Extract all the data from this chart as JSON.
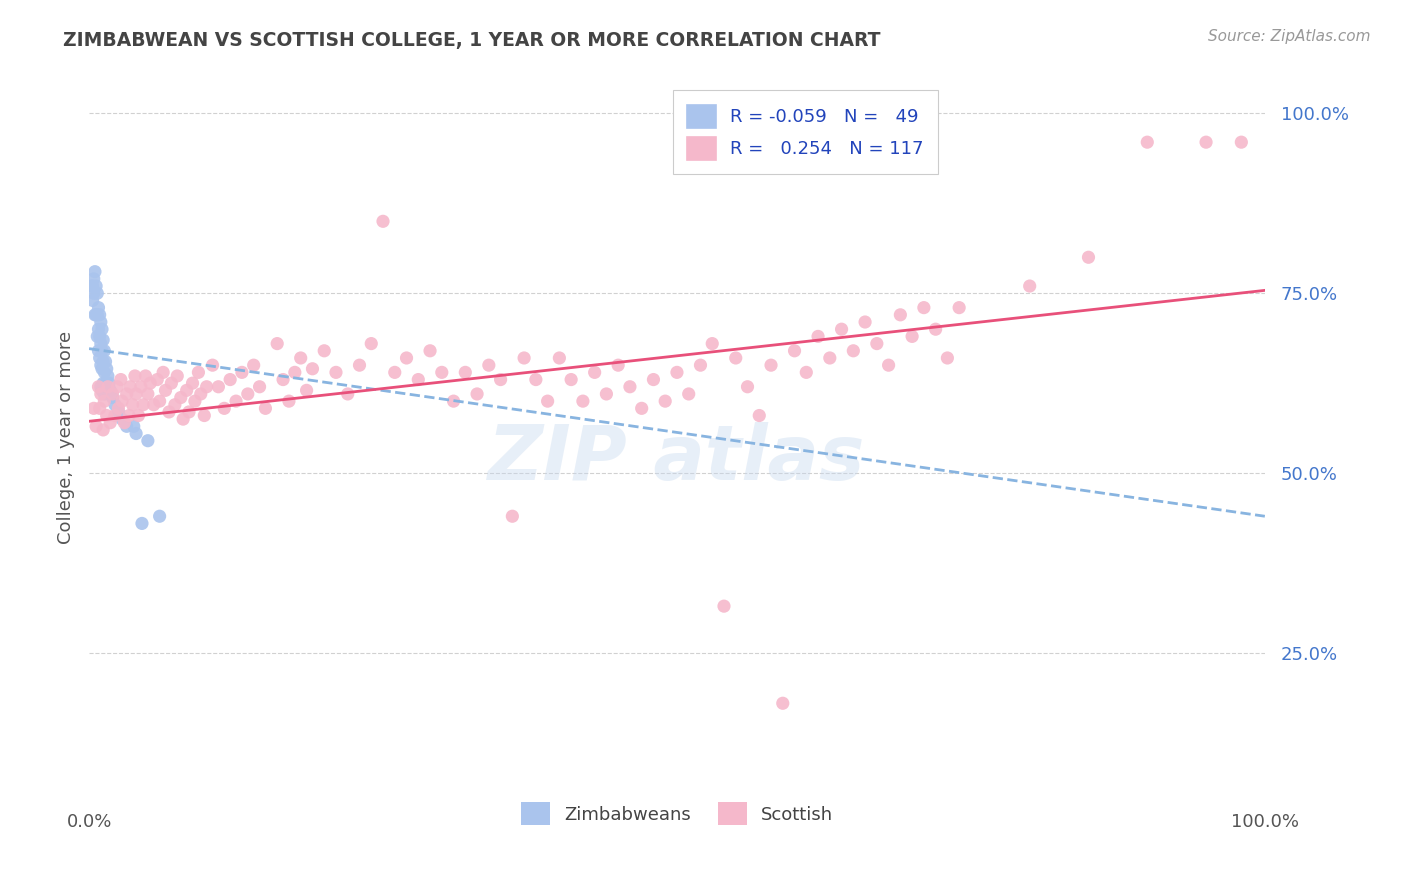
{
  "title": "ZIMBABWEAN VS SCOTTISH COLLEGE, 1 YEAR OR MORE CORRELATION CHART",
  "source": "Source: ZipAtlas.com",
  "ylabel": "College, 1 year or more",
  "zimbabwean_color": "#aac4ed",
  "scottish_color": "#f5b8cb",
  "zimbabwean_line_color": "#88b4e0",
  "scottish_line_color": "#e8507a",
  "background_color": "#ffffff",
  "grid_color": "#cccccc",
  "title_color": "#444444",
  "axis_color": "#555555",
  "ytick_color": "#4477cc",
  "xlim": [
    0.0,
    1.0
  ],
  "ylim": [
    0.05,
    1.05
  ],
  "zim_line": [
    0.0,
    0.673,
    1.0,
    0.44
  ],
  "scot_line": [
    0.0,
    0.572,
    1.0,
    0.754
  ],
  "zimbabwean_points": [
    [
      0.002,
      0.76
    ],
    [
      0.003,
      0.76
    ],
    [
      0.003,
      0.74
    ],
    [
      0.004,
      0.77
    ],
    [
      0.004,
      0.75
    ],
    [
      0.005,
      0.78
    ],
    [
      0.005,
      0.72
    ],
    [
      0.006,
      0.76
    ],
    [
      0.006,
      0.72
    ],
    [
      0.007,
      0.75
    ],
    [
      0.007,
      0.72
    ],
    [
      0.007,
      0.69
    ],
    [
      0.008,
      0.73
    ],
    [
      0.008,
      0.7
    ],
    [
      0.008,
      0.67
    ],
    [
      0.009,
      0.72
    ],
    [
      0.009,
      0.69
    ],
    [
      0.009,
      0.66
    ],
    [
      0.01,
      0.71
    ],
    [
      0.01,
      0.68
    ],
    [
      0.01,
      0.65
    ],
    [
      0.01,
      0.62
    ],
    [
      0.011,
      0.7
    ],
    [
      0.011,
      0.67
    ],
    [
      0.011,
      0.645
    ],
    [
      0.011,
      0.615
    ],
    [
      0.012,
      0.685
    ],
    [
      0.012,
      0.655
    ],
    [
      0.012,
      0.625
    ],
    [
      0.013,
      0.67
    ],
    [
      0.013,
      0.64
    ],
    [
      0.013,
      0.61
    ],
    [
      0.014,
      0.655
    ],
    [
      0.014,
      0.625
    ],
    [
      0.015,
      0.645
    ],
    [
      0.015,
      0.615
    ],
    [
      0.016,
      0.635
    ],
    [
      0.017,
      0.625
    ],
    [
      0.018,
      0.615
    ],
    [
      0.02,
      0.605
    ],
    [
      0.022,
      0.595
    ],
    [
      0.025,
      0.585
    ],
    [
      0.028,
      0.575
    ],
    [
      0.032,
      0.565
    ],
    [
      0.038,
      0.565
    ],
    [
      0.04,
      0.555
    ],
    [
      0.045,
      0.43
    ],
    [
      0.05,
      0.545
    ],
    [
      0.06,
      0.44
    ]
  ],
  "scottish_points": [
    [
      0.004,
      0.59
    ],
    [
      0.006,
      0.565
    ],
    [
      0.008,
      0.62
    ],
    [
      0.009,
      0.59
    ],
    [
      0.01,
      0.61
    ],
    [
      0.012,
      0.56
    ],
    [
      0.013,
      0.6
    ],
    [
      0.015,
      0.58
    ],
    [
      0.016,
      0.62
    ],
    [
      0.018,
      0.57
    ],
    [
      0.02,
      0.61
    ],
    [
      0.022,
      0.58
    ],
    [
      0.024,
      0.62
    ],
    [
      0.025,
      0.59
    ],
    [
      0.027,
      0.63
    ],
    [
      0.028,
      0.6
    ],
    [
      0.03,
      0.57
    ],
    [
      0.032,
      0.61
    ],
    [
      0.034,
      0.58
    ],
    [
      0.035,
      0.62
    ],
    [
      0.037,
      0.595
    ],
    [
      0.039,
      0.635
    ],
    [
      0.04,
      0.61
    ],
    [
      0.042,
      0.58
    ],
    [
      0.044,
      0.62
    ],
    [
      0.046,
      0.595
    ],
    [
      0.048,
      0.635
    ],
    [
      0.05,
      0.61
    ],
    [
      0.052,
      0.625
    ],
    [
      0.055,
      0.595
    ],
    [
      0.058,
      0.63
    ],
    [
      0.06,
      0.6
    ],
    [
      0.063,
      0.64
    ],
    [
      0.065,
      0.615
    ],
    [
      0.068,
      0.585
    ],
    [
      0.07,
      0.625
    ],
    [
      0.073,
      0.595
    ],
    [
      0.075,
      0.635
    ],
    [
      0.078,
      0.605
    ],
    [
      0.08,
      0.575
    ],
    [
      0.083,
      0.615
    ],
    [
      0.085,
      0.585
    ],
    [
      0.088,
      0.625
    ],
    [
      0.09,
      0.6
    ],
    [
      0.093,
      0.64
    ],
    [
      0.095,
      0.61
    ],
    [
      0.098,
      0.58
    ],
    [
      0.1,
      0.62
    ],
    [
      0.105,
      0.65
    ],
    [
      0.11,
      0.62
    ],
    [
      0.115,
      0.59
    ],
    [
      0.12,
      0.63
    ],
    [
      0.125,
      0.6
    ],
    [
      0.13,
      0.64
    ],
    [
      0.135,
      0.61
    ],
    [
      0.14,
      0.65
    ],
    [
      0.145,
      0.62
    ],
    [
      0.15,
      0.59
    ],
    [
      0.16,
      0.68
    ],
    [
      0.165,
      0.63
    ],
    [
      0.17,
      0.6
    ],
    [
      0.175,
      0.64
    ],
    [
      0.18,
      0.66
    ],
    [
      0.185,
      0.615
    ],
    [
      0.19,
      0.645
    ],
    [
      0.2,
      0.67
    ],
    [
      0.21,
      0.64
    ],
    [
      0.22,
      0.61
    ],
    [
      0.23,
      0.65
    ],
    [
      0.24,
      0.68
    ],
    [
      0.25,
      0.85
    ],
    [
      0.26,
      0.64
    ],
    [
      0.27,
      0.66
    ],
    [
      0.28,
      0.63
    ],
    [
      0.29,
      0.67
    ],
    [
      0.3,
      0.64
    ],
    [
      0.31,
      0.6
    ],
    [
      0.32,
      0.64
    ],
    [
      0.33,
      0.61
    ],
    [
      0.34,
      0.65
    ],
    [
      0.35,
      0.63
    ],
    [
      0.36,
      0.44
    ],
    [
      0.37,
      0.66
    ],
    [
      0.38,
      0.63
    ],
    [
      0.39,
      0.6
    ],
    [
      0.4,
      0.66
    ],
    [
      0.41,
      0.63
    ],
    [
      0.42,
      0.6
    ],
    [
      0.43,
      0.64
    ],
    [
      0.44,
      0.61
    ],
    [
      0.45,
      0.65
    ],
    [
      0.46,
      0.62
    ],
    [
      0.47,
      0.59
    ],
    [
      0.48,
      0.63
    ],
    [
      0.49,
      0.6
    ],
    [
      0.5,
      0.64
    ],
    [
      0.51,
      0.61
    ],
    [
      0.52,
      0.65
    ],
    [
      0.53,
      0.68
    ],
    [
      0.54,
      0.315
    ],
    [
      0.55,
      0.66
    ],
    [
      0.56,
      0.62
    ],
    [
      0.57,
      0.58
    ],
    [
      0.58,
      0.65
    ],
    [
      0.59,
      0.18
    ],
    [
      0.6,
      0.67
    ],
    [
      0.61,
      0.64
    ],
    [
      0.62,
      0.69
    ],
    [
      0.63,
      0.66
    ],
    [
      0.64,
      0.7
    ],
    [
      0.65,
      0.67
    ],
    [
      0.66,
      0.71
    ],
    [
      0.67,
      0.68
    ],
    [
      0.68,
      0.65
    ],
    [
      0.69,
      0.72
    ],
    [
      0.7,
      0.69
    ],
    [
      0.71,
      0.73
    ],
    [
      0.72,
      0.7
    ],
    [
      0.73,
      0.66
    ],
    [
      0.74,
      0.73
    ],
    [
      0.8,
      0.76
    ],
    [
      0.85,
      0.8
    ],
    [
      0.9,
      0.96
    ],
    [
      0.95,
      0.96
    ],
    [
      0.98,
      0.96
    ]
  ]
}
